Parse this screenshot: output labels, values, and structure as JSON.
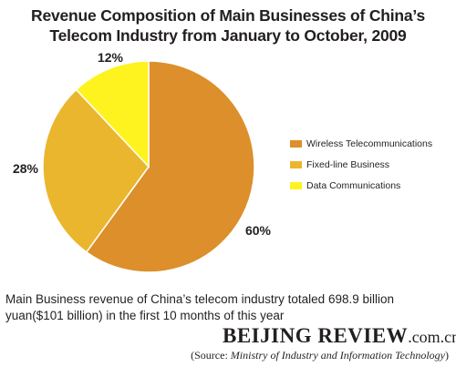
{
  "chart_data": {
    "type": "pie",
    "title_line1": "Revenue Composition of Main Businesses of China’s",
    "title_line2": "Telecom Industry from January to October, 2009",
    "slices": [
      {
        "name": "Wireless Telecommunications",
        "value": 60,
        "label": "60%",
        "color": "#dc8f2a"
      },
      {
        "name": "Fixed-line Business",
        "value": 28,
        "label": "28%",
        "color": "#eab62d"
      },
      {
        "name": "Data Communications",
        "value": 12,
        "label": "12%",
        "color": "#fef31e"
      }
    ],
    "legend_placement": "right"
  },
  "note": "Main Business revenue of China’s telecom industry totaled 698.9 billion yuan($101 billion) in the first 10 months of this year",
  "brand": {
    "name": "BEIJING REVIEW",
    "domain": ".com.cn"
  },
  "source": {
    "prefix": "(Source: ",
    "name": "Ministry of Industry and Information Technology",
    "suffix": ")"
  }
}
